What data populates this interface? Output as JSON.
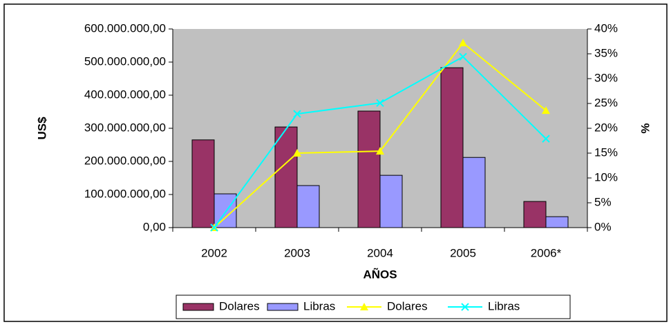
{
  "chart_data": {
    "type": "bar",
    "xlabel": "AÑOS",
    "ylabel": "US$",
    "y2label": "%",
    "categories": [
      "2002",
      "2003",
      "2004",
      "2005",
      "2006*"
    ],
    "series": [
      {
        "name": "Dolares",
        "type": "bar",
        "color": "#993366",
        "values": [
          265000000,
          304000000,
          352000000,
          483000000,
          79000000
        ]
      },
      {
        "name": "Libras",
        "type": "bar",
        "color": "#9999ff",
        "values": [
          102000000,
          127000000,
          158000000,
          212000000,
          33000000
        ]
      },
      {
        "name": "Dolares",
        "type": "line",
        "axis": "y2",
        "marker": "triangle",
        "color": "#ffff00",
        "values": [
          0,
          15,
          15.4,
          37.2,
          23.6
        ]
      },
      {
        "name": "Libras",
        "type": "line",
        "axis": "y2",
        "marker": "x",
        "color": "#00ffff",
        "values": [
          0,
          22.9,
          25.1,
          34.4,
          17.9
        ]
      }
    ],
    "ylim": [
      0,
      600000000
    ],
    "yticks": [
      {
        "value": 0,
        "label": "0,00"
      },
      {
        "value": 100000000,
        "label": "100.000.000,00"
      },
      {
        "value": 200000000,
        "label": "200.000.000,00"
      },
      {
        "value": 300000000,
        "label": "300.000.000,00"
      },
      {
        "value": 400000000,
        "label": "400.000.000,00"
      },
      {
        "value": 500000000,
        "label": "500.000.000,00"
      },
      {
        "value": 600000000,
        "label": "600.000.000,00"
      }
    ],
    "y2lim": [
      0,
      40
    ],
    "y2ticks": [
      {
        "value": 0,
        "label": "0%"
      },
      {
        "value": 5,
        "label": "5%"
      },
      {
        "value": 10,
        "label": "10%"
      },
      {
        "value": 15,
        "label": "15%"
      },
      {
        "value": 20,
        "label": "20%"
      },
      {
        "value": 25,
        "label": "25%"
      },
      {
        "value": 30,
        "label": "30%"
      },
      {
        "value": 35,
        "label": "35%"
      },
      {
        "value": 40,
        "label": "40%"
      }
    ],
    "plot_background": "#c0c0c0",
    "legend": "bottom"
  }
}
